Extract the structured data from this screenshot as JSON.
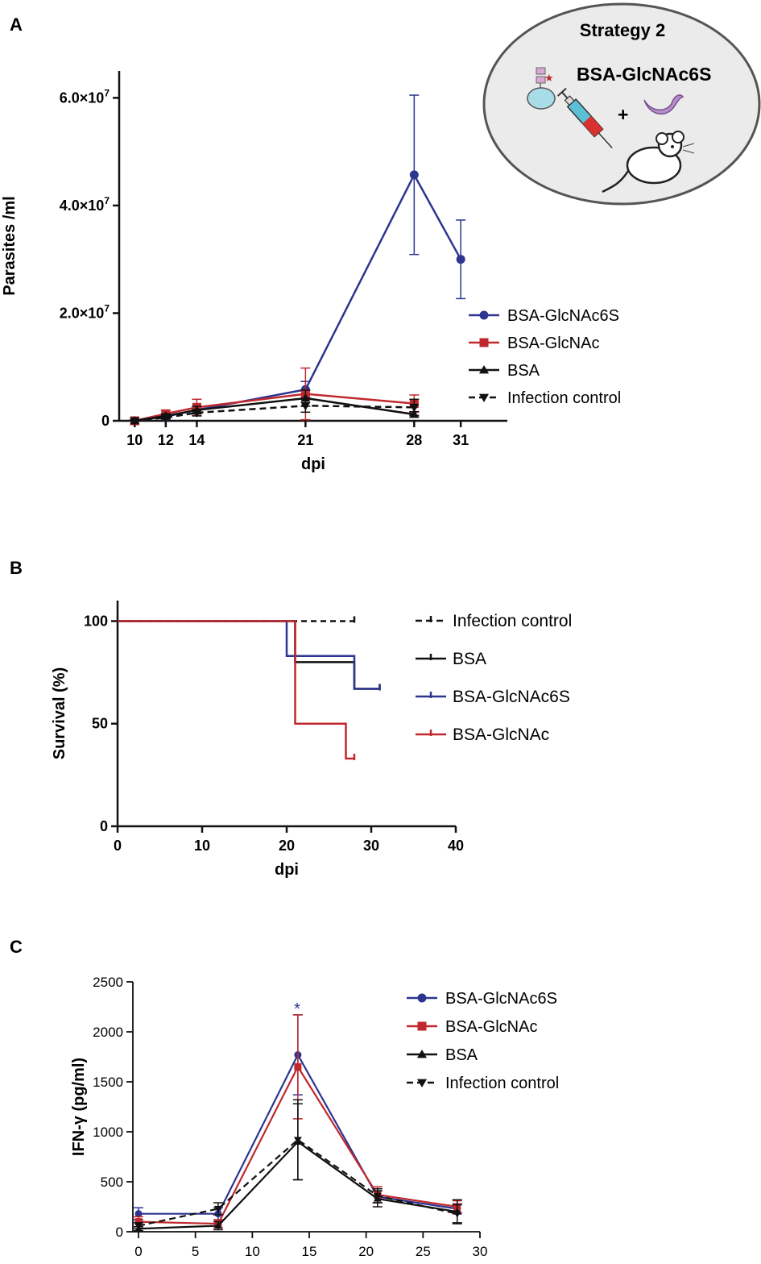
{
  "colors": {
    "blue": "#2c3590",
    "red": "#c0282d",
    "black": "#111111",
    "dash": "#111111"
  },
  "panels": {
    "A": {
      "label": "A",
      "inset": {
        "title": "Strategy 2",
        "compound": "BSA-GlcNAc6S",
        "plus": "+",
        "icons": [
          "glycan-icon",
          "syringe-icon",
          "parasite-icon",
          "mouse-icon"
        ]
      }
    },
    "B": {
      "label": "B"
    },
    "C": {
      "label": "C",
      "significance": "*"
    }
  },
  "chart_data": [
    {
      "id": "A",
      "type": "line",
      "title": "",
      "xlabel": "dpi",
      "ylabel": "Parasites /ml",
      "x_ticks": [
        10,
        12,
        14,
        21,
        28,
        31
      ],
      "x_tick_labels": [
        "10",
        "12",
        "14",
        "21",
        "28",
        "31"
      ],
      "y_ticks": [
        0,
        20000000,
        40000000,
        60000000
      ],
      "y_tick_base": [
        "0",
        "2.0×10",
        "4.0×10",
        "6.0×10"
      ],
      "y_tick_exp": [
        "",
        "7",
        "7",
        "7"
      ],
      "xlim": [
        9,
        34
      ],
      "ylim": [
        0,
        65000000
      ],
      "series": [
        {
          "name": "BSA-GlcNAc6S",
          "color": "blue",
          "marker": "circle",
          "dash": false,
          "x": [
            10,
            12,
            14,
            21,
            28,
            31
          ],
          "y": [
            0,
            800000,
            2000000,
            5800000,
            45700000,
            30000000
          ],
          "err": [
            200000,
            400000,
            600000,
            1500000,
            14800000,
            7300000
          ]
        },
        {
          "name": "BSA-GlcNAc",
          "color": "red",
          "marker": "square",
          "dash": false,
          "x": [
            10,
            12,
            14,
            21,
            28
          ],
          "y": [
            0,
            1300000,
            2500000,
            5000000,
            3200000
          ],
          "err": [
            200000,
            600000,
            1500000,
            4800000,
            1600000
          ]
        },
        {
          "name": "BSA",
          "color": "black",
          "marker": "triangle",
          "dash": false,
          "x": [
            10,
            12,
            14,
            21,
            28
          ],
          "y": [
            0,
            900000,
            2000000,
            4200000,
            1200000
          ],
          "err": [
            150000,
            400000,
            700000,
            1500000,
            500000
          ]
        },
        {
          "name": "Infection control",
          "color": "dash",
          "marker": "tri-down",
          "dash": true,
          "x": [
            10,
            12,
            14,
            21,
            28
          ],
          "y": [
            0,
            600000,
            1500000,
            2800000,
            2500000
          ],
          "err": [
            150000,
            300000,
            600000,
            1200000,
            1500000
          ]
        }
      ],
      "legend": [
        "BSA-GlcNAc6S",
        "BSA-GlcNAc",
        "BSA",
        "Infection control"
      ]
    },
    {
      "id": "B",
      "type": "line",
      "title": "",
      "xlabel": "dpi",
      "ylabel": "Survival (%)",
      "x_ticks": [
        0,
        10,
        20,
        30,
        40
      ],
      "y_ticks": [
        0,
        50,
        100
      ],
      "xlim": [
        0,
        40
      ],
      "ylim": [
        0,
        110
      ],
      "series": [
        {
          "name": "Infection control",
          "color": "dash",
          "dash": true,
          "steps": [
            [
              0,
              100
            ],
            [
              28,
              100
            ]
          ]
        },
        {
          "name": "BSA",
          "color": "black",
          "dash": false,
          "steps": [
            [
              0,
              100
            ],
            [
              21,
              100
            ],
            [
              21,
              80
            ],
            [
              28,
              80
            ],
            [
              28,
              67
            ],
            [
              31,
              67
            ]
          ]
        },
        {
          "name": "BSA-GlcNAc6S",
          "color": "blue",
          "dash": false,
          "steps": [
            [
              0,
              100
            ],
            [
              20,
              100
            ],
            [
              20,
              83
            ],
            [
              28,
              83
            ],
            [
              28,
              67
            ],
            [
              31,
              67
            ]
          ]
        },
        {
          "name": "BSA-GlcNAc",
          "color": "red",
          "dash": false,
          "steps": [
            [
              0,
              100
            ],
            [
              21,
              100
            ],
            [
              21,
              50
            ],
            [
              27,
              50
            ],
            [
              27,
              33
            ],
            [
              28,
              33
            ]
          ]
        }
      ],
      "legend": [
        "Infection control",
        "BSA",
        "BSA-GlcNAc6S",
        "BSA-GlcNAc"
      ]
    },
    {
      "id": "C",
      "type": "line",
      "title": "",
      "xlabel": "dpi",
      "ylabel": "IFN-γ (pg/ml)",
      "x_ticks": [
        0,
        5,
        10,
        15,
        20,
        25,
        30
      ],
      "y_ticks": [
        0,
        500,
        1000,
        1500,
        2000,
        2500
      ],
      "xlim": [
        0,
        30
      ],
      "ylim": [
        0,
        2500
      ],
      "series": [
        {
          "name": "BSA-GlcNAc6S",
          "color": "blue",
          "marker": "circle",
          "dash": false,
          "x": [
            0,
            7,
            14,
            21,
            28
          ],
          "y": [
            180,
            180,
            1770,
            350,
            230
          ],
          "err": [
            60,
            60,
            400,
            60,
            50
          ]
        },
        {
          "name": "BSA-GlcNAc",
          "color": "red",
          "marker": "square",
          "dash": false,
          "x": [
            0,
            7,
            14,
            21,
            28
          ],
          "y": [
            100,
            80,
            1650,
            370,
            250
          ],
          "err": [
            50,
            40,
            520,
            80,
            60
          ]
        },
        {
          "name": "BSA",
          "color": "black",
          "marker": "triangle",
          "dash": false,
          "x": [
            0,
            7,
            14,
            21,
            28
          ],
          "y": [
            30,
            60,
            900,
            330,
            200
          ],
          "err": [
            20,
            40,
            380,
            80,
            120
          ]
        },
        {
          "name": "Infection control",
          "color": "dash",
          "marker": "tri-down",
          "dash": true,
          "x": [
            0,
            7,
            14,
            21,
            28
          ],
          "y": [
            60,
            230,
            920,
            360,
            180
          ],
          "err": [
            30,
            60,
            400,
            70,
            90
          ]
        }
      ],
      "legend": [
        "BSA-GlcNAc6S",
        "BSA-GlcNAc",
        "BSA",
        "Infection control"
      ]
    }
  ]
}
